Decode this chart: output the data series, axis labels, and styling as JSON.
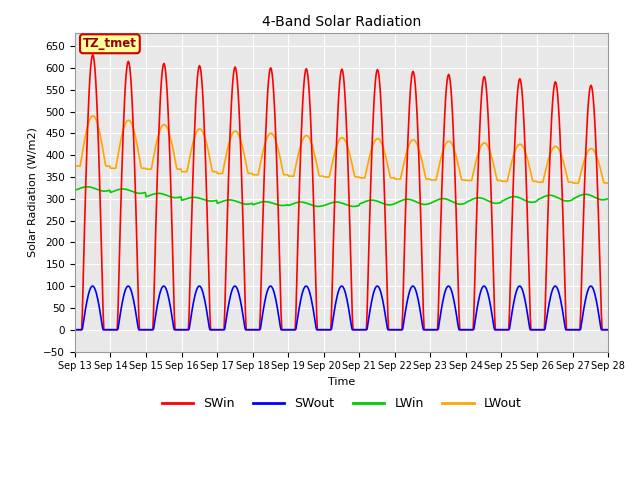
{
  "title": "4-Band Solar Radiation",
  "xlabel": "Time",
  "ylabel": "Solar Radiation (W/m2)",
  "ylim": [
    -50,
    680
  ],
  "ylim_display": [
    -50,
    650
  ],
  "yticks": [
    -50,
    0,
    50,
    100,
    150,
    200,
    250,
    300,
    350,
    400,
    450,
    500,
    550,
    600,
    650
  ],
  "n_days": 15,
  "day_start": 13,
  "colors": {
    "SWin": "#FF0000",
    "SWout": "#0000FF",
    "LWin": "#00CC00",
    "LWout": "#FFA500"
  },
  "legend_label": "TZ_tmet",
  "legend_box_color": "#FFFF99",
  "legend_box_edge": "#CC0000",
  "background_plot": "#E8E8E8",
  "grid_color": "#FFFFFF",
  "linewidth": 1.2,
  "SWin_peaks": [
    630,
    615,
    610,
    605,
    602,
    600,
    598,
    597,
    596,
    592,
    585,
    580,
    575,
    568,
    560
  ],
  "LWout_night": [
    375,
    370,
    368,
    362,
    358,
    355,
    352,
    350,
    348,
    345,
    343,
    342,
    340,
    338,
    336
  ],
  "LWout_peak": [
    490,
    480,
    470,
    460,
    455,
    450,
    445,
    440,
    438,
    435,
    432,
    428,
    425,
    420,
    415
  ],
  "LWin_base": [
    310,
    305,
    295,
    288,
    280,
    278,
    275,
    275,
    278,
    278,
    278,
    280,
    282,
    285,
    288
  ],
  "LWin_peak": [
    335,
    330,
    320,
    310,
    305,
    300,
    300,
    300,
    305,
    308,
    310,
    312,
    315,
    318,
    320
  ]
}
